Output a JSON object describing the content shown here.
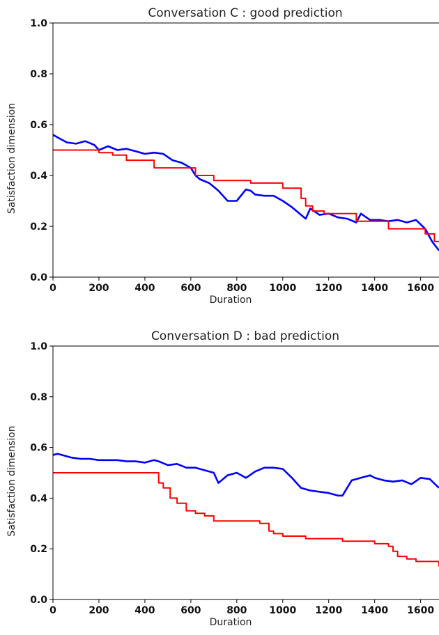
{
  "chart_data": [
    {
      "type": "line",
      "title": "Conversation C : good prediction",
      "xlabel": "Duration",
      "ylabel": "Satisfaction dimension",
      "xlim": [
        0,
        1680
      ],
      "ylim": [
        0,
        1.0
      ],
      "xticks": [
        0,
        200,
        400,
        600,
        800,
        1000,
        1200,
        1400,
        1600
      ],
      "yticks": [
        0.0,
        0.2,
        0.4,
        0.6,
        0.8,
        1.0
      ],
      "grid": false,
      "series": [
        {
          "color": "#0000ff",
          "step": false,
          "x": [
            0,
            30,
            60,
            100,
            140,
            180,
            200,
            240,
            280,
            320,
            360,
            400,
            440,
            480,
            520,
            560,
            600,
            620,
            640,
            680,
            720,
            760,
            800,
            840,
            860,
            880,
            920,
            960,
            1000,
            1040,
            1080,
            1100,
            1120,
            1160,
            1200,
            1240,
            1280,
            1320,
            1340,
            1380,
            1420,
            1460,
            1500,
            1540,
            1580,
            1620,
            1650,
            1680
          ],
          "y": [
            0.56,
            0.545,
            0.53,
            0.525,
            0.535,
            0.52,
            0.5,
            0.515,
            0.5,
            0.505,
            0.495,
            0.485,
            0.49,
            0.485,
            0.46,
            0.45,
            0.43,
            0.4,
            0.385,
            0.37,
            0.34,
            0.3,
            0.3,
            0.345,
            0.34,
            0.325,
            0.32,
            0.32,
            0.3,
            0.275,
            0.245,
            0.23,
            0.27,
            0.245,
            0.25,
            0.235,
            0.23,
            0.215,
            0.25,
            0.225,
            0.225,
            0.22,
            0.225,
            0.215,
            0.225,
            0.19,
            0.14,
            0.105
          ]
        },
        {
          "color": "#ff0000",
          "step": true,
          "x": [
            0,
            200,
            260,
            320,
            440,
            600,
            620,
            700,
            860,
            1000,
            1080,
            1100,
            1130,
            1180,
            1320,
            1340,
            1460,
            1620,
            1660,
            1680
          ],
          "y": [
            0.5,
            0.49,
            0.48,
            0.46,
            0.43,
            0.43,
            0.4,
            0.38,
            0.37,
            0.35,
            0.31,
            0.28,
            0.26,
            0.25,
            0.22,
            0.22,
            0.19,
            0.17,
            0.14,
            0.14
          ]
        }
      ]
    },
    {
      "type": "line",
      "title": "Conversation D : bad prediction",
      "xlabel": "Duration",
      "ylabel": "Satisfaction dimension",
      "xlim": [
        0,
        1680
      ],
      "ylim": [
        0,
        1.0
      ],
      "xticks": [
        0,
        200,
        400,
        600,
        800,
        1000,
        1200,
        1400,
        1600
      ],
      "yticks": [
        0.0,
        0.2,
        0.4,
        0.6,
        0.8,
        1.0
      ],
      "grid": false,
      "series": [
        {
          "color": "#0000ff",
          "step": false,
          "x": [
            0,
            20,
            40,
            80,
            120,
            160,
            200,
            240,
            280,
            320,
            360,
            400,
            440,
            460,
            500,
            540,
            580,
            620,
            660,
            700,
            720,
            760,
            800,
            840,
            880,
            920,
            960,
            1000,
            1040,
            1060,
            1080,
            1120,
            1160,
            1200,
            1240,
            1260,
            1280,
            1300,
            1340,
            1380,
            1400,
            1440,
            1480,
            1520,
            1560,
            1600,
            1640,
            1680
          ],
          "y": [
            0.57,
            0.575,
            0.57,
            0.56,
            0.555,
            0.555,
            0.55,
            0.55,
            0.55,
            0.545,
            0.545,
            0.54,
            0.55,
            0.545,
            0.53,
            0.535,
            0.52,
            0.52,
            0.51,
            0.5,
            0.46,
            0.49,
            0.5,
            0.48,
            0.505,
            0.52,
            0.52,
            0.515,
            0.48,
            0.46,
            0.44,
            0.43,
            0.425,
            0.42,
            0.41,
            0.41,
            0.44,
            0.47,
            0.48,
            0.49,
            0.48,
            0.47,
            0.465,
            0.47,
            0.455,
            0.48,
            0.475,
            0.44
          ]
        },
        {
          "color": "#ff0000",
          "step": true,
          "x": [
            0,
            460,
            480,
            510,
            540,
            580,
            620,
            660,
            700,
            720,
            900,
            940,
            960,
            1000,
            1040,
            1100,
            1260,
            1400,
            1460,
            1480,
            1500,
            1540,
            1580,
            1660,
            1680
          ],
          "y": [
            0.5,
            0.46,
            0.44,
            0.4,
            0.38,
            0.35,
            0.34,
            0.33,
            0.31,
            0.31,
            0.3,
            0.27,
            0.26,
            0.25,
            0.25,
            0.24,
            0.23,
            0.22,
            0.21,
            0.19,
            0.17,
            0.16,
            0.15,
            0.15,
            0.13
          ]
        }
      ]
    }
  ]
}
